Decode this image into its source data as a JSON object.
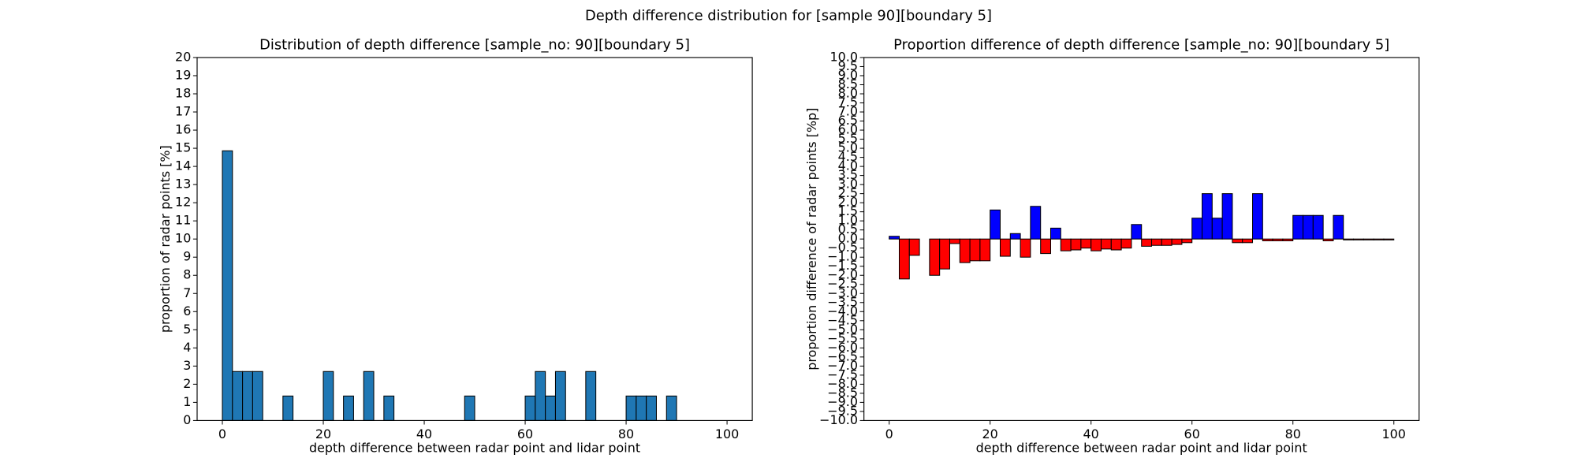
{
  "title": "Depth difference distribution for [sample 90][boundary 5]",
  "chart_data": [
    {
      "type": "histogram",
      "title": "Distribution of depth difference [sample_no: 90][boundary 5]",
      "xlabel": "depth difference between radar point and lidar point",
      "ylabel": "proportion of radar points [%]",
      "color": "#1f77b4",
      "edgecolor": "#000000",
      "bins": [
        0,
        2,
        4,
        6,
        8,
        10,
        12,
        14,
        16,
        18,
        20,
        22,
        24,
        26,
        28,
        30,
        32,
        34,
        36,
        38,
        40,
        42,
        44,
        46,
        48,
        50,
        52,
        54,
        56,
        58,
        60,
        62,
        64,
        66,
        68,
        70,
        72,
        74,
        76,
        78,
        80,
        82,
        84,
        86,
        88,
        90,
        92,
        94,
        96,
        98,
        100
      ],
      "values": [
        14.86,
        2.7,
        2.7,
        2.7,
        0,
        0,
        1.35,
        0,
        0,
        0,
        2.7,
        0,
        1.35,
        0,
        2.7,
        0,
        1.35,
        0,
        0,
        0,
        0,
        0,
        0,
        0,
        1.35,
        0,
        0,
        0,
        0,
        0,
        1.35,
        2.7,
        1.35,
        2.7,
        0,
        0,
        2.7,
        0,
        0,
        0,
        1.35,
        1.35,
        1.35,
        0,
        1.35,
        0,
        0,
        0,
        0,
        0
      ],
      "xlim": [
        -5,
        105
      ],
      "xticks": [
        0,
        20,
        40,
        60,
        80,
        100
      ],
      "ylim": [
        0,
        20
      ],
      "yticks": [
        0,
        1,
        2,
        3,
        4,
        5,
        6,
        7,
        8,
        9,
        10,
        11,
        12,
        13,
        14,
        15,
        16,
        17,
        18,
        19,
        20
      ]
    },
    {
      "type": "histogram",
      "title": "Proportion difference of depth difference [sample_no: 90][boundary 5]",
      "xlabel": "depth difference between radar point and lidar point",
      "ylabel": "proportion difference of radar points [%p]",
      "positive_color": "#0000ff",
      "negative_color": "#ff0000",
      "edgecolor": "#000000",
      "bins": [
        0,
        2,
        4,
        6,
        8,
        10,
        12,
        14,
        16,
        18,
        20,
        22,
        24,
        26,
        28,
        30,
        32,
        34,
        36,
        38,
        40,
        42,
        44,
        46,
        48,
        50,
        52,
        54,
        56,
        58,
        60,
        62,
        64,
        66,
        68,
        70,
        72,
        74,
        76,
        78,
        80,
        82,
        84,
        86,
        88,
        90,
        92,
        94,
        96,
        98,
        100
      ],
      "values": [
        0.15,
        -2.2,
        -0.9,
        0,
        -2.0,
        -1.65,
        -0.25,
        -1.3,
        -1.2,
        -1.2,
        1.6,
        -0.95,
        0.3,
        -1.0,
        1.8,
        -0.8,
        0.6,
        -0.65,
        -0.6,
        -0.5,
        -0.65,
        -0.55,
        -0.6,
        -0.5,
        0.8,
        -0.4,
        -0.35,
        -0.35,
        -0.3,
        -0.2,
        1.15,
        2.5,
        1.15,
        2.5,
        -0.2,
        -0.2,
        2.5,
        -0.1,
        -0.1,
        -0.1,
        1.3,
        1.3,
        1.3,
        -0.1,
        1.3,
        -0.05,
        -0.05,
        -0.05,
        -0.05,
        -0.05
      ],
      "xlim": [
        -5,
        105
      ],
      "xticks": [
        0,
        20,
        40,
        60,
        80,
        100
      ],
      "ylim": [
        -10,
        10
      ],
      "yticks": [
        {
          "value": -10,
          "label": "−10.0"
        },
        {
          "value": -9.5,
          "label": "−9.5"
        },
        {
          "value": -9,
          "label": "−9.0"
        },
        {
          "value": -8.5,
          "label": "−8.5"
        },
        {
          "value": -8,
          "label": "−8.0"
        },
        {
          "value": -7.5,
          "label": "−7.5"
        },
        {
          "value": -7,
          "label": "−7.0"
        },
        {
          "value": -6.5,
          "label": "−6.5"
        },
        {
          "value": -6,
          "label": "−6.0"
        },
        {
          "value": -5.5,
          "label": "−5.5"
        },
        {
          "value": -5,
          "label": "−5.0"
        },
        {
          "value": -4.5,
          "label": "−4.5"
        },
        {
          "value": -4,
          "label": "−4.0"
        },
        {
          "value": -3.5,
          "label": "−3.5"
        },
        {
          "value": -3,
          "label": "−3.0"
        },
        {
          "value": -2.5,
          "label": "−2.5"
        },
        {
          "value": -2,
          "label": "−2.0"
        },
        {
          "value": -1.5,
          "label": "−1.5"
        },
        {
          "value": -1,
          "label": "−1.0"
        },
        {
          "value": -0.5,
          "label": "−0.5"
        },
        {
          "value": 0,
          "label": "0.0"
        },
        0.5,
        {
          "value": 1,
          "label": "1.0"
        },
        1.5,
        {
          "value": 2,
          "label": "2.0"
        },
        2.5,
        {
          "value": 3,
          "label": "3.0"
        },
        3.5,
        {
          "value": 4,
          "label": "4.0"
        },
        4.5,
        {
          "value": 5,
          "label": "5.0"
        },
        5.5,
        {
          "value": 6,
          "label": "6.0"
        },
        6.5,
        {
          "value": 7,
          "label": "7.0"
        },
        7.5,
        {
          "value": 8,
          "label": "8.0"
        },
        8.5,
        {
          "value": 9,
          "label": "9.0"
        },
        9.5,
        {
          "value": 10,
          "label": "10.0"
        }
      ]
    }
  ]
}
